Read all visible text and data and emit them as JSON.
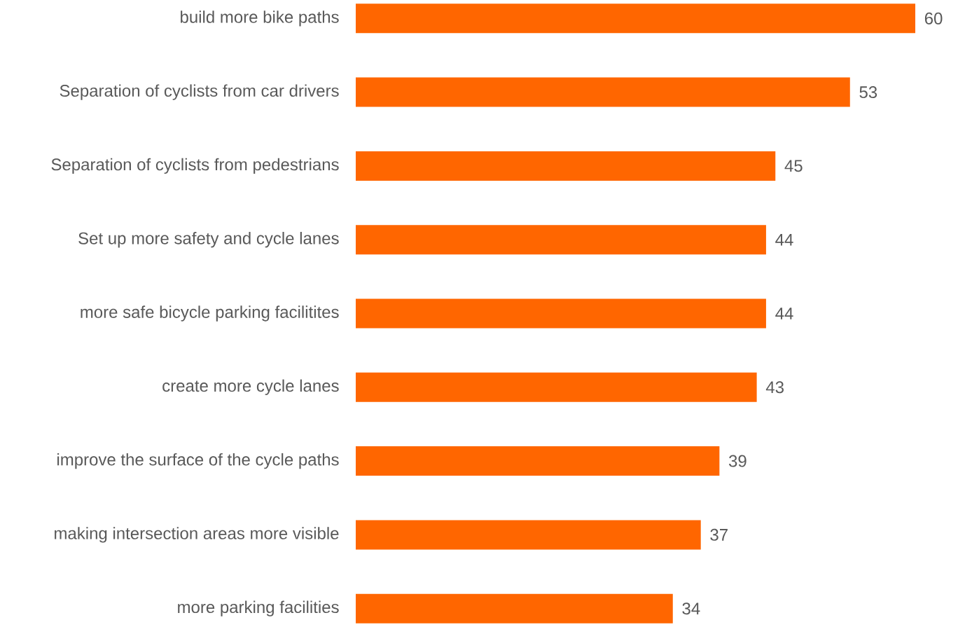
{
  "chart_data": {
    "type": "bar",
    "orientation": "horizontal",
    "categories": [
      "build more bike paths",
      "Separation of cyclists from car drivers",
      "Separation of cyclists from pedestrians",
      "Set up more safety and cycle lanes",
      "more safe bicycle parking facilitites",
      "create more cycle lanes",
      "improve the surface of the cycle paths",
      "making intersection areas more visible",
      "more parking facilities"
    ],
    "values": [
      60,
      53,
      45,
      44,
      44,
      43,
      39,
      37,
      34
    ],
    "color": "#ff6600",
    "xlim": [
      0,
      60
    ],
    "data_labels": true
  }
}
